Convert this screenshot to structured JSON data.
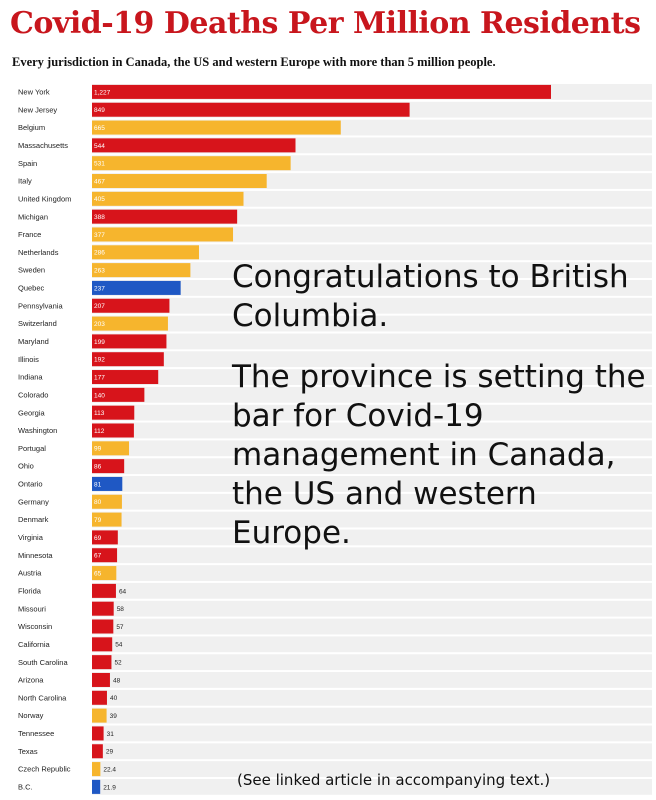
{
  "chart_data": {
    "type": "bar",
    "orientation": "horizontal",
    "title": "Covid-19 Deaths Per Million Residents",
    "subtitle": "Every jurisdiction in Canada, the US and western Europe with more than 5 million people.",
    "categories": [
      "New York",
      "New Jersey",
      "Belgium",
      "Massachusetts",
      "Spain",
      "Italy",
      "United Kingdom",
      "Michigan",
      "France",
      "Netherlands",
      "Sweden",
      "Quebec",
      "Pennsylvania",
      "Switzerland",
      "Maryland",
      "Illinois",
      "Indiana",
      "Colorado",
      "Georgia",
      "Washington",
      "Portugal",
      "Ohio",
      "Ontario",
      "Germany",
      "Denmark",
      "Virginia",
      "Minnesota",
      "Austria",
      "Florida",
      "Missouri",
      "Wisconsin",
      "California",
      "South Carolina",
      "Arizona",
      "North Carolina",
      "Norway",
      "Tennessee",
      "Texas",
      "Czech Republic",
      "B.C."
    ],
    "values": [
      1227,
      849,
      665,
      544,
      531,
      467,
      405,
      388,
      377,
      286,
      263,
      237,
      207,
      203,
      199,
      192,
      177,
      140,
      113,
      112,
      99,
      86,
      81,
      80,
      79,
      69,
      67,
      65,
      64,
      58,
      57,
      54,
      52,
      48,
      40,
      39,
      31,
      29,
      22.4,
      21.9
    ],
    "value_labels": [
      "1,227",
      "849",
      "665",
      "544",
      "531",
      "467",
      "405",
      "388",
      "377",
      "286",
      "263",
      "237",
      "207",
      "203",
      "199",
      "192",
      "177",
      "140",
      "113",
      "112",
      "99",
      "86",
      "81",
      "80",
      "79",
      "69",
      "67",
      "65",
      "64",
      "58",
      "57",
      "54",
      "52",
      "48",
      "40",
      "39",
      "31",
      "29",
      "22.4",
      "21.9"
    ],
    "groups": [
      "US",
      "US",
      "Europe",
      "US",
      "Europe",
      "Europe",
      "Europe",
      "US",
      "Europe",
      "Europe",
      "Europe",
      "Canada",
      "US",
      "Europe",
      "US",
      "US",
      "US",
      "US",
      "US",
      "US",
      "Europe",
      "US",
      "Canada",
      "Europe",
      "Europe",
      "US",
      "US",
      "Europe",
      "US",
      "US",
      "US",
      "US",
      "US",
      "US",
      "US",
      "Europe",
      "US",
      "US",
      "Europe",
      "Canada"
    ],
    "colors": {
      "US": "#d7141b",
      "Europe": "#f6b52d",
      "Canada": "#1f58c4"
    },
    "xlim": [
      0,
      1227
    ],
    "grid": false
  },
  "caption": {
    "line1": "Congratulations to British Columbia.",
    "line2": "The province is setting the bar for Covid-19 management in Canada, the US and western Europe."
  },
  "footnote": "(See linked article in accompanying text.)"
}
